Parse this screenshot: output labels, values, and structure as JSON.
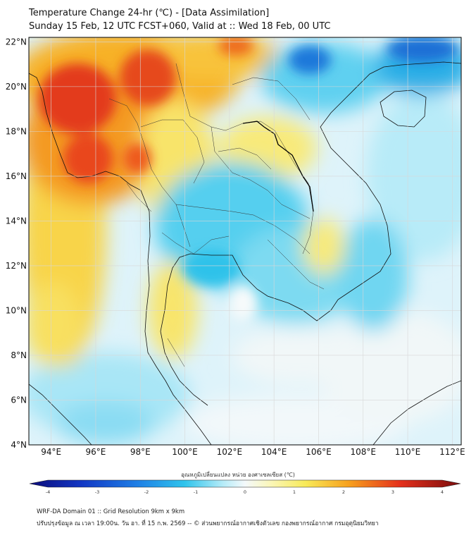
{
  "header": {
    "title_line1": "Temperature Change 24-hr (℃) - [Data Assimilation]",
    "title_line2": "Sunday 15 Feb, 12 UTC FCST+060, Valid at :: Wed 18 Feb, 00 UTC"
  },
  "map": {
    "lat_labels": [
      "22°N",
      "20°N",
      "18°N",
      "16°N",
      "14°N",
      "12°N",
      "10°N",
      "8°N",
      "6°N",
      "4°N"
    ],
    "lon_labels": [
      "94°E",
      "96°E",
      "98°E",
      "100°E",
      "102°E",
      "104°E",
      "106°E",
      "108°E",
      "110°E",
      "112°E"
    ],
    "lat_range": [
      4,
      22.2
    ],
    "lon_range": [
      93,
      112.4
    ],
    "field": "24-hr temperature change",
    "colors": {
      "strong_warm": "#e0281c",
      "warm": "#f7a21e",
      "mild_warm": "#f8f07a",
      "neutral": "#eef6fb",
      "mild_cool": "#8ee0f3",
      "cool": "#2fc2ea",
      "strong_cool": "#1d6fd6"
    }
  },
  "colorbar": {
    "title": "อุณหภูมิเปลี่ยนแปลง หน่วย องศาเซลเซียส (℃)",
    "min": -4,
    "max": 4,
    "tick_labels": [
      "-4",
      "-3",
      "-2",
      "-1",
      "0",
      "1",
      "2",
      "3",
      "4"
    ]
  },
  "footer": {
    "line1": "WRF-DA Domain 01 :: Grid Resolution 9km x 9km",
    "line2": "ปรับปรุงข้อมูล ณ เวลา 19:00น. วัน อา. ที่ 15 ก.พ. 2569 -- © ส่วนพยากรณ์อากาศเชิงตัวเลข กองพยากรณ์อากาศ กรมอุตุนิยมวิทยา"
  }
}
